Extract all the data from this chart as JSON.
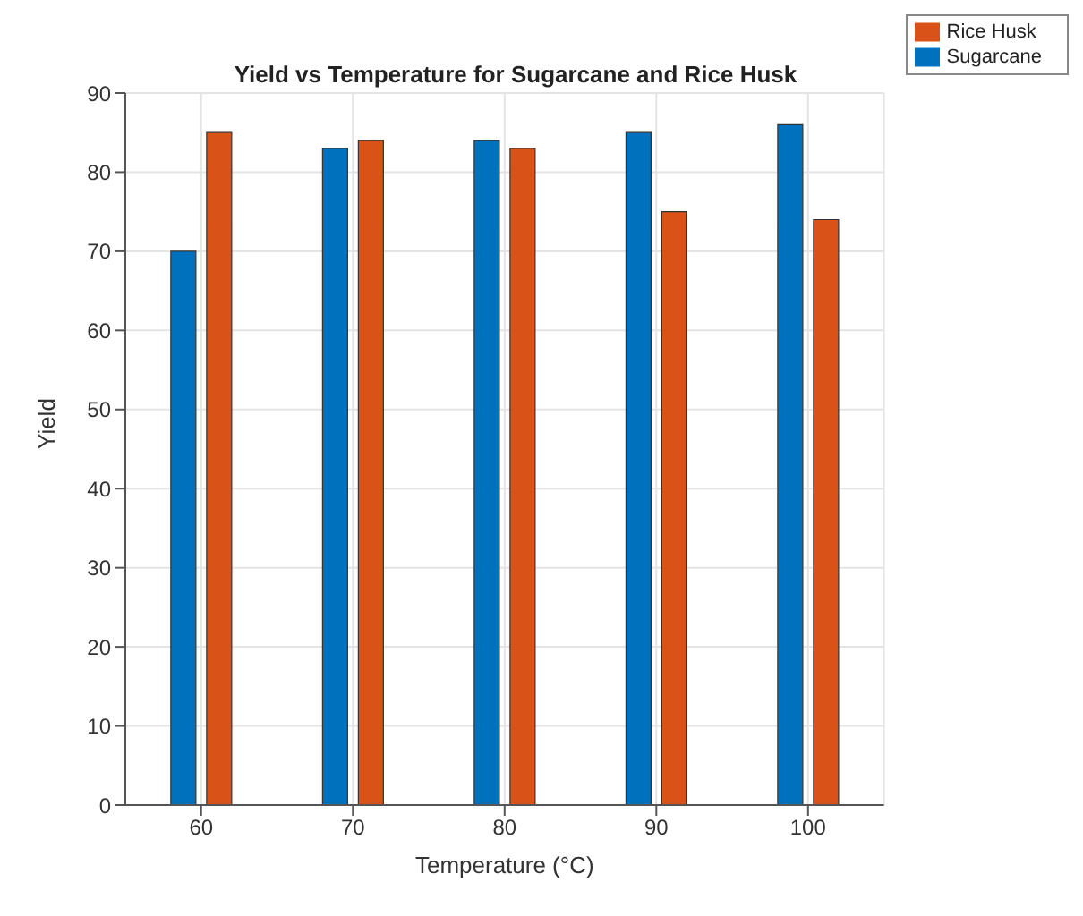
{
  "chart_data": {
    "type": "bar",
    "title": "Yield vs Temperature for Sugarcane and Rice Husk",
    "xlabel": "Temperature (°C)",
    "ylabel": "Yield",
    "categories": [
      "60",
      "70",
      "80",
      "90",
      "100"
    ],
    "series": [
      {
        "name": "Sugarcane",
        "color": "#0072bd",
        "values": [
          70,
          83,
          84,
          85,
          86
        ]
      },
      {
        "name": "Rice Husk",
        "color": "#d95319",
        "values": [
          85,
          84,
          83,
          75,
          74
        ]
      }
    ],
    "ylim": [
      0,
      90
    ],
    "yticks": [
      0,
      10,
      20,
      30,
      40,
      50,
      60,
      70,
      80,
      90
    ],
    "grid": true,
    "legend": "top right"
  }
}
